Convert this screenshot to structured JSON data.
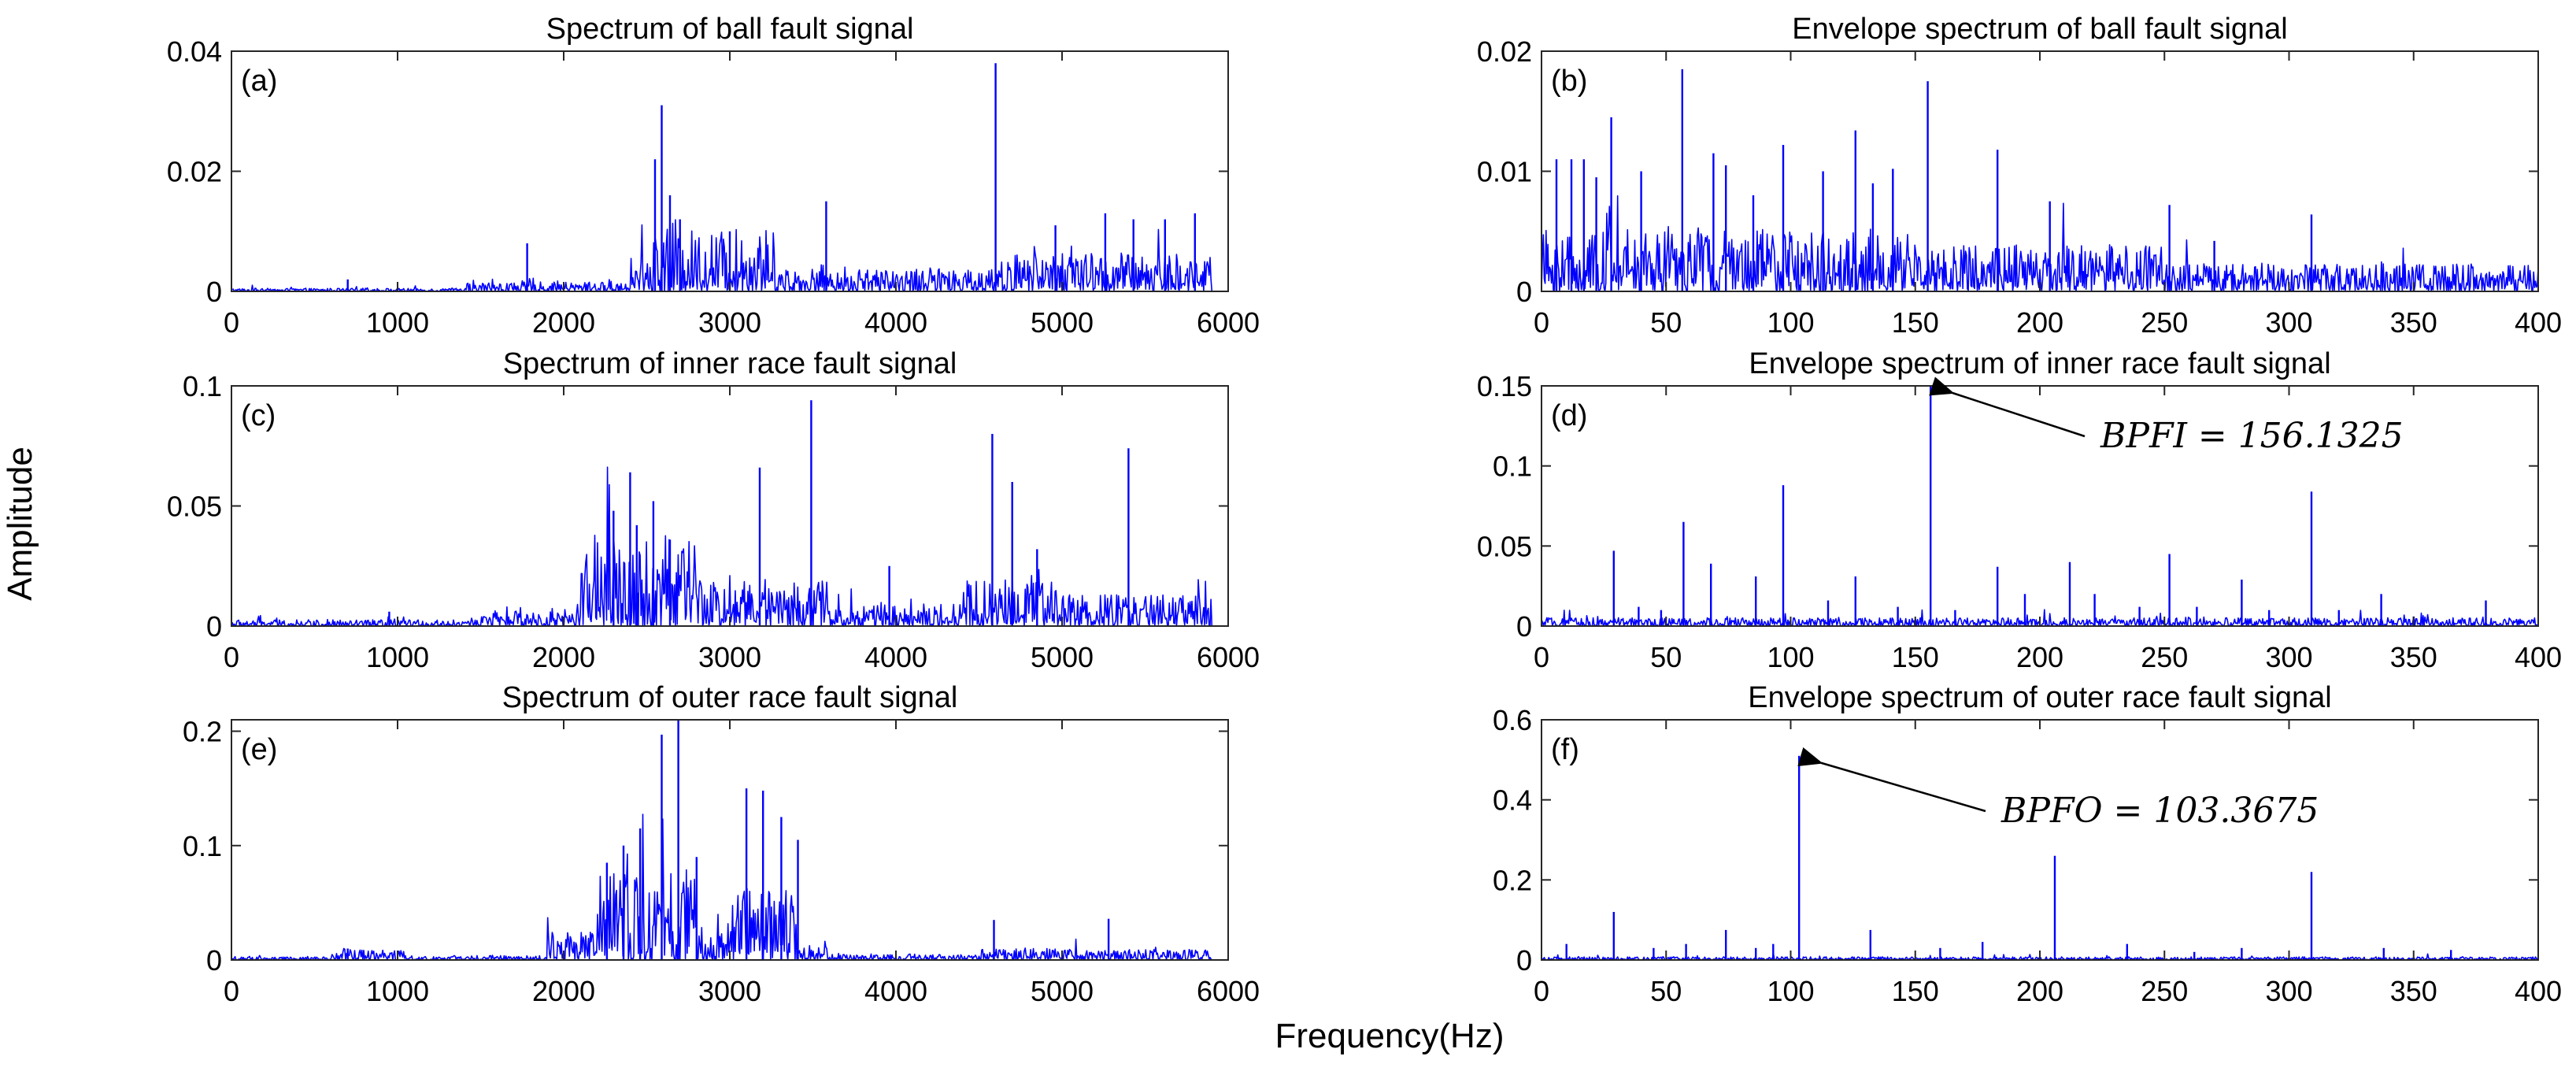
{
  "figure": {
    "common_ylabel": "Amplitude",
    "common_xlabel": "Frequency(Hz)",
    "trace_color": "#0000ff"
  },
  "chart_data": [
    {
      "id": "a",
      "type": "line",
      "panel_label": "(a)",
      "title": "Spectrum of ball fault signal",
      "xlabel": "Frequency(Hz)",
      "ylabel": "Amplitude",
      "xlim": [
        0,
        6000
      ],
      "ylim": [
        0,
        0.04
      ],
      "xticks": [
        0,
        1000,
        2000,
        3000,
        4000,
        5000,
        6000
      ],
      "xtick_labels": [
        "0",
        "1000",
        "2000",
        "3000",
        "4000",
        "5000",
        "6000"
      ],
      "yticks": [
        0,
        0.02,
        0.04
      ],
      "ytick_labels": [
        "0",
        "0.02",
        "0.04"
      ],
      "noise_bands": [
        [
          0,
          1400,
          0.0004
        ],
        [
          1400,
          2400,
          0.0012
        ],
        [
          2400,
          2500,
          0.004
        ],
        [
          2500,
          3300,
          0.008
        ],
        [
          3300,
          4500,
          0.003
        ],
        [
          4500,
          4700,
          0.004
        ],
        [
          4700,
          5900,
          0.005
        ]
      ],
      "peaks": [
        [
          700,
          0.002
        ],
        [
          1780,
          0.008
        ],
        [
          2550,
          0.022
        ],
        [
          2590,
          0.031
        ],
        [
          2640,
          0.016
        ],
        [
          2700,
          0.012
        ],
        [
          3000,
          0.01
        ],
        [
          3580,
          0.015
        ],
        [
          4600,
          0.038
        ],
        [
          4960,
          0.011
        ],
        [
          5260,
          0.013
        ],
        [
          5430,
          0.012
        ],
        [
          5620,
          0.012
        ],
        [
          5800,
          0.013
        ]
      ],
      "annotation": null
    },
    {
      "id": "b",
      "type": "line",
      "panel_label": "(b)",
      "title": "Envelope spectrum of ball fault signal",
      "xlabel": "Frequency(Hz)",
      "ylabel": "Amplitude",
      "xlim": [
        0,
        400
      ],
      "ylim": [
        0,
        0.02
      ],
      "xticks": [
        0,
        50,
        100,
        150,
        200,
        250,
        300,
        350,
        400
      ],
      "xtick_labels": [
        "0",
        "50",
        "100",
        "150",
        "200",
        "250",
        "300",
        "350",
        "400"
      ],
      "yticks": [
        0,
        0.01,
        0.02
      ],
      "ytick_labels": [
        "0",
        "0.01",
        "0.02"
      ],
      "noise_bands": [
        [
          0,
          150,
          0.004
        ],
        [
          150,
          250,
          0.003
        ],
        [
          250,
          400,
          0.0018
        ]
      ],
      "peaks": [
        [
          6,
          0.011
        ],
        [
          12,
          0.011
        ],
        [
          17,
          0.011
        ],
        [
          22,
          0.0095
        ],
        [
          28,
          0.0145
        ],
        [
          40,
          0.01
        ],
        [
          56.5,
          0.0185
        ],
        [
          69,
          0.0115
        ],
        [
          74,
          0.0105
        ],
        [
          85,
          0.008
        ],
        [
          97,
          0.0122
        ],
        [
          113,
          0.01
        ],
        [
          126,
          0.0134
        ],
        [
          133,
          0.009
        ],
        [
          141,
          0.0102
        ],
        [
          155,
          0.0175
        ],
        [
          183,
          0.0118
        ],
        [
          204,
          0.0075
        ],
        [
          252,
          0.0072
        ],
        [
          270,
          0.0042
        ],
        [
          309,
          0.0064
        ]
      ],
      "annotation": null
    },
    {
      "id": "c",
      "type": "line",
      "panel_label": "(c)",
      "title": "Spectrum of inner race fault signal",
      "xlabel": "Frequency(Hz)",
      "ylabel": "Amplitude",
      "xlim": [
        0,
        6000
      ],
      "ylim": [
        0,
        0.1
      ],
      "xticks": [
        0,
        1000,
        2000,
        3000,
        4000,
        5000,
        6000
      ],
      "xtick_labels": [
        "0",
        "1000",
        "2000",
        "3000",
        "4000",
        "5000",
        "6000"
      ],
      "yticks": [
        0,
        0.05,
        0.1
      ],
      "ytick_labels": [
        "0",
        "0.05",
        "0.1"
      ],
      "noise_bands": [
        [
          0,
          1500,
          0.002
        ],
        [
          1500,
          2100,
          0.005
        ],
        [
          2100,
          2800,
          0.03
        ],
        [
          2800,
          3600,
          0.015
        ],
        [
          3600,
          4400,
          0.008
        ],
        [
          4400,
          5000,
          0.015
        ],
        [
          5000,
          5900,
          0.01
        ]
      ],
      "peaks": [
        [
          950,
          0.006
        ],
        [
          2300,
          0.048
        ],
        [
          2400,
          0.064
        ],
        [
          2440,
          0.042
        ],
        [
          2540,
          0.052
        ],
        [
          2640,
          0.036
        ],
        [
          3180,
          0.066
        ],
        [
          3490,
          0.094
        ],
        [
          3960,
          0.025
        ],
        [
          4580,
          0.08
        ],
        [
          4700,
          0.06
        ],
        [
          4850,
          0.032
        ],
        [
          5400,
          0.074
        ]
      ],
      "annotation": null
    },
    {
      "id": "d",
      "type": "line",
      "panel_label": "(d)",
      "title": "Envelope spectrum of inner race fault signal",
      "xlabel": "Frequency(Hz)",
      "ylabel": "Amplitude",
      "xlim": [
        0,
        400
      ],
      "ylim": [
        0,
        0.15
      ],
      "xticks": [
        0,
        50,
        100,
        150,
        200,
        250,
        300,
        350,
        400
      ],
      "xtick_labels": [
        "0",
        "50",
        "100",
        "150",
        "200",
        "250",
        "300",
        "350",
        "400"
      ],
      "yticks": [
        0,
        0.05,
        0.1,
        0.15
      ],
      "ytick_labels": [
        "0",
        "0.05",
        "0.1",
        "0.15"
      ],
      "noise_bands": [
        [
          0,
          400,
          0.004
        ]
      ],
      "peaks": [
        [
          29,
          0.047
        ],
        [
          39,
          0.012
        ],
        [
          48,
          0.01
        ],
        [
          57,
          0.065
        ],
        [
          68,
          0.039
        ],
        [
          86,
          0.031
        ],
        [
          97,
          0.088
        ],
        [
          115,
          0.016
        ],
        [
          126,
          0.031
        ],
        [
          143,
          0.012
        ],
        [
          156.1325,
          0.15
        ],
        [
          166,
          0.01
        ],
        [
          183,
          0.037
        ],
        [
          194,
          0.02
        ],
        [
          212,
          0.04
        ],
        [
          222,
          0.02
        ],
        [
          240,
          0.012
        ],
        [
          252,
          0.045
        ],
        [
          263,
          0.012
        ],
        [
          281,
          0.029
        ],
        [
          292,
          0.01
        ],
        [
          309,
          0.084
        ],
        [
          320,
          0.01
        ],
        [
          337,
          0.02
        ],
        [
          350,
          0.006
        ],
        [
          379,
          0.016
        ]
      ],
      "annotation": {
        "text": "BPFI = 156.1325",
        "x": 156.1325,
        "y": 0.15
      }
    },
    {
      "id": "e",
      "type": "line",
      "panel_label": "(e)",
      "title": "Spectrum of outer race fault signal",
      "xlabel": "Frequency(Hz)",
      "ylabel": "Amplitude",
      "xlim": [
        0,
        6000
      ],
      "ylim": [
        0,
        0.21
      ],
      "xticks": [
        0,
        1000,
        2000,
        3000,
        4000,
        5000,
        6000
      ],
      "xtick_labels": [
        "0",
        "1000",
        "2000",
        "3000",
        "4000",
        "5000",
        "6000"
      ],
      "yticks": [
        0,
        0.1,
        0.2
      ],
      "ytick_labels": [
        "0",
        "0.1",
        "0.2"
      ],
      "noise_bands": [
        [
          0,
          600,
          0.002
        ],
        [
          600,
          1050,
          0.008
        ],
        [
          1050,
          1900,
          0.003
        ],
        [
          1900,
          2200,
          0.02
        ],
        [
          2200,
          2800,
          0.06
        ],
        [
          2800,
          3000,
          0.02
        ],
        [
          3000,
          3400,
          0.05
        ],
        [
          3400,
          3600,
          0.01
        ],
        [
          3600,
          4500,
          0.004
        ],
        [
          4500,
          5100,
          0.008
        ],
        [
          5100,
          5900,
          0.007
        ]
      ],
      "peaks": [
        [
          700,
          0.01
        ],
        [
          2260,
          0.085
        ],
        [
          2360,
          0.1
        ],
        [
          2460,
          0.115
        ],
        [
          2590,
          0.197
        ],
        [
          2690,
          0.21
        ],
        [
          2800,
          0.09
        ],
        [
          3100,
          0.15
        ],
        [
          3200,
          0.148
        ],
        [
          3310,
          0.125
        ],
        [
          3410,
          0.105
        ],
        [
          4590,
          0.035
        ],
        [
          5280,
          0.036
        ]
      ],
      "annotation": null
    },
    {
      "id": "f",
      "type": "line",
      "panel_label": "(f)",
      "title": "Envelope spectrum of outer race fault signal",
      "xlabel": "Frequency(Hz)",
      "ylabel": "Amplitude",
      "xlim": [
        0,
        400
      ],
      "ylim": [
        0,
        0.6
      ],
      "xticks": [
        0,
        50,
        100,
        150,
        200,
        250,
        300,
        350,
        400
      ],
      "xtick_labels": [
        "0",
        "50",
        "100",
        "150",
        "200",
        "250",
        "300",
        "350",
        "400"
      ],
      "yticks": [
        0,
        0.2,
        0.4,
        0.6
      ],
      "ytick_labels": [
        "0",
        "0.2",
        "0.4",
        "0.6"
      ],
      "noise_bands": [
        [
          0,
          400,
          0.006
        ]
      ],
      "peaks": [
        [
          10,
          0.04
        ],
        [
          29,
          0.12
        ],
        [
          45,
          0.03
        ],
        [
          58,
          0.04
        ],
        [
          74,
          0.075
        ],
        [
          86,
          0.03
        ],
        [
          93,
          0.04
        ],
        [
          103.3675,
          0.51
        ],
        [
          132,
          0.075
        ],
        [
          160,
          0.03
        ],
        [
          177,
          0.045
        ],
        [
          206,
          0.26
        ],
        [
          235,
          0.04
        ],
        [
          262,
          0.02
        ],
        [
          281,
          0.03
        ],
        [
          309,
          0.22
        ],
        [
          338,
          0.03
        ],
        [
          365,
          0.025
        ]
      ],
      "annotation": {
        "text": "BPFO = 103.3675",
        "x": 103.3675,
        "y": 0.51
      }
    }
  ]
}
